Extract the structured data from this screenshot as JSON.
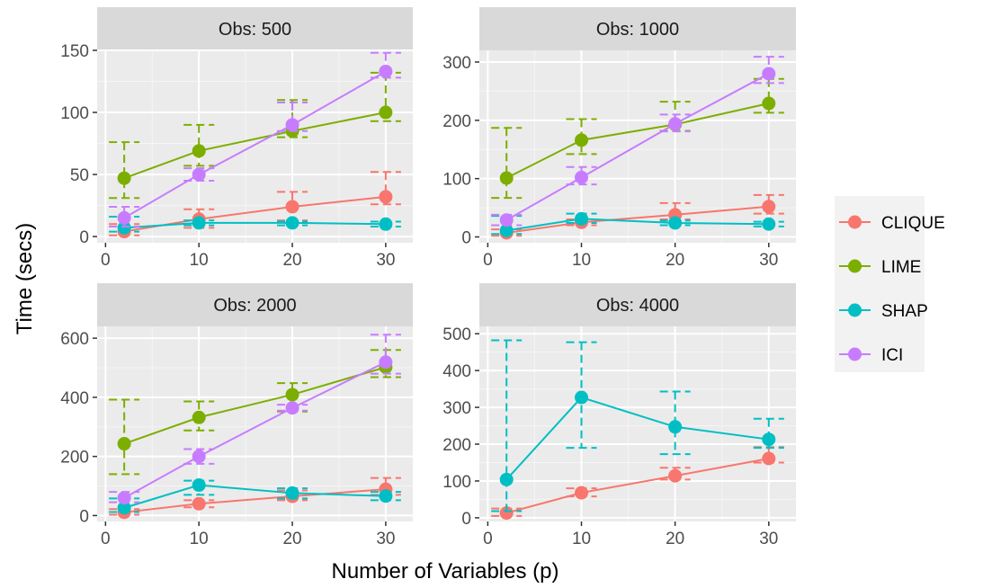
{
  "chart_data": {
    "type": "line",
    "xlabel": "Number of Variables (p)",
    "ylabel": "Time (secs)",
    "x": [
      2,
      10,
      20,
      30
    ],
    "x_ticks": [
      0,
      10,
      20,
      30
    ],
    "error_bars": "dashed",
    "grid": true,
    "legend_position": "right",
    "series_meta": [
      {
        "name": "CLIQUE",
        "color": "#F8766D"
      },
      {
        "name": "LIME",
        "color": "#7CAE00"
      },
      {
        "name": "SHAP",
        "color": "#00BFC4"
      },
      {
        "name": "ICI",
        "color": "#C77CFF"
      }
    ],
    "panels": [
      {
        "title": "Obs: 500",
        "ylim": [
          -5,
          150
        ],
        "y_ticks": [
          0,
          50,
          100,
          150
        ],
        "series": [
          {
            "name": "CLIQUE",
            "values": [
              4,
              14,
              24,
              32
            ],
            "lower": [
              1,
              7,
              13,
              26
            ],
            "upper": [
              10,
              22,
              36,
              52
            ]
          },
          {
            "name": "LIME",
            "values": [
              47,
              69,
              85,
              100
            ],
            "lower": [
              31,
              57,
              80,
              93
            ],
            "upper": [
              76,
              90,
              110,
              132
            ]
          },
          {
            "name": "SHAP",
            "values": [
              7,
              11,
              11,
              10
            ],
            "lower": [
              4,
              9,
              9,
              8
            ],
            "upper": [
              16,
              13,
              12,
              12
            ]
          },
          {
            "name": "ICI",
            "values": [
              15,
              50,
              90,
              133
            ],
            "lower": [
              8,
              45,
              85,
              128
            ],
            "upper": [
              24,
              55,
              108,
              148
            ]
          }
        ]
      },
      {
        "title": "Obs: 1000",
        "ylim": [
          -10,
          320
        ],
        "y_ticks": [
          0,
          100,
          200,
          300
        ],
        "series": [
          {
            "name": "CLIQUE",
            "values": [
              7,
              25,
              38,
              52
            ],
            "lower": [
              2,
              20,
              30,
              40
            ],
            "upper": [
              13,
              30,
              58,
              72
            ]
          },
          {
            "name": "LIME",
            "values": [
              101,
              166,
              193,
              229
            ],
            "lower": [
              67,
              142,
              182,
              213
            ],
            "upper": [
              187,
              202,
              232,
              271
            ]
          },
          {
            "name": "SHAP",
            "values": [
              11,
              31,
              24,
              22
            ],
            "lower": [
              5,
              24,
              20,
              18
            ],
            "upper": [
              36,
              40,
              28,
              26
            ]
          },
          {
            "name": "ICI",
            "values": [
              29,
              102,
              194,
              280
            ],
            "lower": [
              20,
              90,
              181,
              264
            ],
            "upper": [
              38,
              120,
              210,
              309
            ]
          }
        ]
      },
      {
        "title": "Obs: 2000",
        "ylim": [
          -20,
          640
        ],
        "y_ticks": [
          0,
          200,
          400,
          600
        ],
        "series": [
          {
            "name": "CLIQUE",
            "values": [
              11,
              40,
              65,
              89
            ],
            "lower": [
              3,
              28,
              52,
              70
            ],
            "upper": [
              22,
              52,
              85,
              127
            ]
          },
          {
            "name": "LIME",
            "values": [
              243,
              332,
              409,
              502
            ],
            "lower": [
              140,
              288,
              352,
              468
            ],
            "upper": [
              392,
              386,
              448,
              560
            ]
          },
          {
            "name": "SHAP",
            "values": [
              26,
              103,
              76,
              66
            ],
            "lower": [
              12,
              70,
              58,
              52
            ],
            "upper": [
              58,
              118,
              92,
              80
            ]
          },
          {
            "name": "ICI",
            "values": [
              60,
              200,
              364,
              519
            ],
            "lower": [
              45,
              175,
              355,
              480
            ],
            "upper": [
              80,
              225,
              375,
              612
            ]
          }
        ]
      },
      {
        "title": "Obs: 4000",
        "ylim": [
          -10,
          520
        ],
        "y_ticks": [
          0,
          100,
          200,
          300,
          400,
          500
        ],
        "series": [
          {
            "name": "CLIQUE",
            "values": [
              13,
              68,
              114,
              161
            ],
            "lower": [
              5,
              58,
              104,
              150
            ],
            "upper": [
              25,
              80,
              136,
              192
            ]
          },
          {
            "name": "SHAP",
            "values": [
              104,
              327,
              247,
              213
            ],
            "lower": [
              18,
              190,
              173,
              190
            ],
            "upper": [
              482,
              477,
              343,
              269
            ]
          }
        ]
      }
    ]
  }
}
